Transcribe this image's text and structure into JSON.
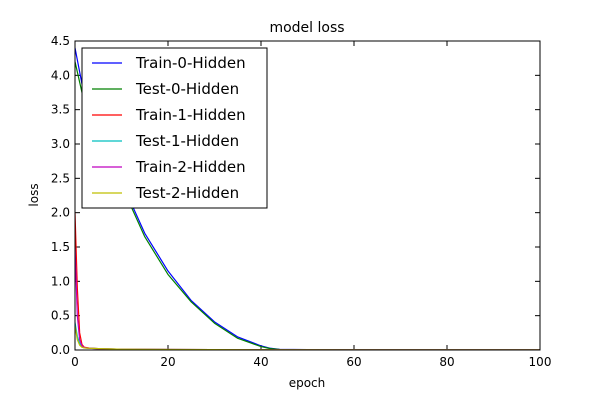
{
  "chart_data": {
    "type": "line",
    "title": "model loss",
    "xlabel": "epoch",
    "ylabel": "loss",
    "xlim": [
      0,
      100
    ],
    "ylim": [
      0,
      4.5
    ],
    "xticks": [
      "0",
      "20",
      "40",
      "60",
      "80",
      "100"
    ],
    "yticks": [
      "0.0",
      "0.5",
      "1.0",
      "1.5",
      "2.0",
      "2.5",
      "3.0",
      "3.5",
      "4.0",
      "4.5"
    ],
    "grid": false,
    "legend_position": "top-left",
    "series": [
      {
        "name": "Train-0-Hidden",
        "color": "#0000ff",
        "x": [
          0,
          2,
          5,
          10,
          15,
          20,
          25,
          30,
          35,
          40,
          42,
          44,
          50,
          60,
          70,
          80,
          90,
          100
        ],
        "y": [
          4.4,
          3.7,
          3.15,
          2.45,
          1.7,
          1.15,
          0.72,
          0.41,
          0.19,
          0.06,
          0.025,
          0.01,
          0.005,
          0.003,
          0.003,
          0.003,
          0.003,
          0.003
        ]
      },
      {
        "name": "Test-0-Hidden",
        "color": "#008000",
        "x": [
          0,
          2,
          5,
          10,
          15,
          20,
          25,
          30,
          35,
          40,
          42,
          44,
          50,
          60,
          70,
          80,
          90,
          100
        ],
        "y": [
          4.2,
          3.6,
          3.1,
          2.4,
          1.65,
          1.1,
          0.7,
          0.39,
          0.17,
          0.05,
          0.02,
          0.008,
          0.004,
          0.003,
          0.003,
          0.003,
          0.003,
          0.003
        ]
      },
      {
        "name": "Train-1-Hidden",
        "color": "#ff0000",
        "x": [
          0,
          0.5,
          1,
          1.5,
          2,
          3,
          5,
          10,
          20,
          40,
          60,
          80,
          100
        ],
        "y": [
          2.0,
          0.9,
          0.25,
          0.08,
          0.04,
          0.03,
          0.02,
          0.012,
          0.008,
          0.004,
          0.003,
          0.003,
          0.003
        ]
      },
      {
        "name": "Test-1-Hidden",
        "color": "#00bfbf",
        "x": [
          0,
          0.5,
          1,
          1.5,
          2,
          3,
          5,
          10,
          20,
          40,
          60,
          80,
          100
        ],
        "y": [
          0.4,
          0.2,
          0.1,
          0.05,
          0.03,
          0.025,
          0.02,
          0.012,
          0.008,
          0.004,
          0.003,
          0.003,
          0.003
        ]
      },
      {
        "name": "Train-2-Hidden",
        "color": "#bf00bf",
        "x": [
          0,
          0.5,
          1,
          1.5,
          2,
          3,
          5,
          10,
          20,
          40,
          60,
          80,
          100
        ],
        "y": [
          1.5,
          0.5,
          0.15,
          0.06,
          0.035,
          0.025,
          0.018,
          0.012,
          0.008,
          0.004,
          0.003,
          0.003,
          0.003
        ]
      },
      {
        "name": "Test-2-Hidden",
        "color": "#bfbf00",
        "x": [
          0,
          0.5,
          1,
          1.5,
          2,
          3,
          5,
          10,
          20,
          40,
          60,
          80,
          100
        ],
        "y": [
          0.35,
          0.15,
          0.07,
          0.04,
          0.03,
          0.025,
          0.02,
          0.012,
          0.008,
          0.004,
          0.003,
          0.003,
          0.003
        ]
      }
    ]
  }
}
